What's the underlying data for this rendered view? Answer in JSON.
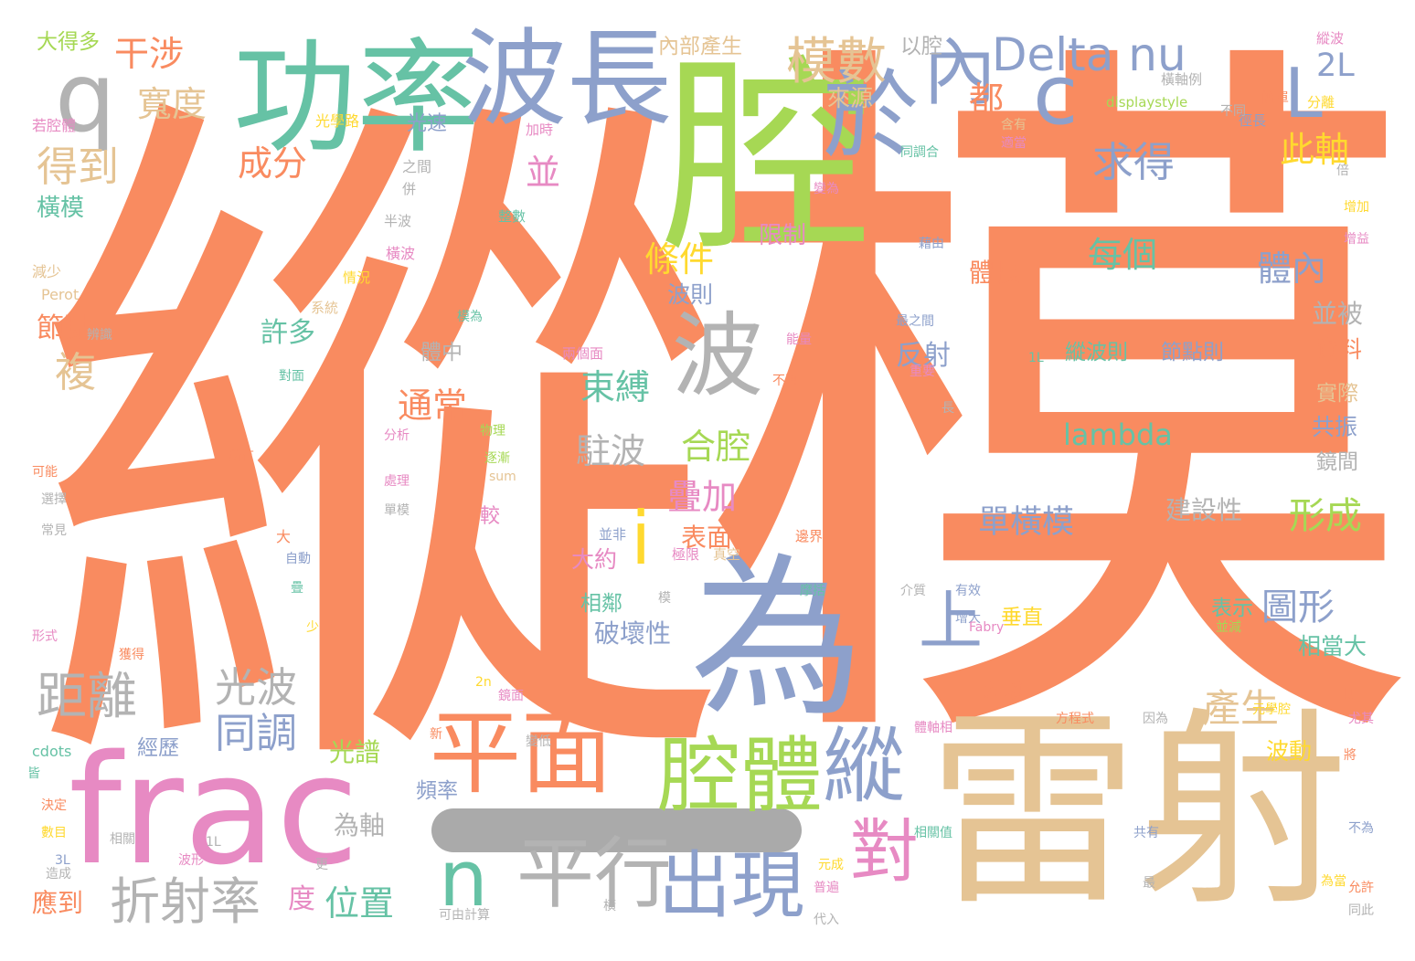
{
  "palette": {
    "orange": "#f98b60",
    "green": "#66c2a5",
    "blue": "#8da0cb",
    "pink": "#e78ac3",
    "lime": "#a6d854",
    "yellow": "#ffd92f",
    "tan": "#e5c494",
    "gray": "#b3b3b3"
  },
  "words": [
    {
      "text": "縱",
      "color": "orange",
      "orient": "h"
    },
    {
      "text": "模",
      "color": "orange",
      "orient": "h"
    },
    {
      "text": "腔",
      "color": "lime",
      "orient": "h"
    },
    {
      "text": "為",
      "color": "blue",
      "orient": "h"
    },
    {
      "text": "雷射",
      "color": "tan",
      "orient": "h"
    },
    {
      "text": "frac",
      "color": "pink",
      "orient": "h"
    },
    {
      "text": "功率",
      "color": "green",
      "orient": "h"
    },
    {
      "text": "波長",
      "color": "blue",
      "orient": "h"
    },
    {
      "text": "平面",
      "color": "orange",
      "orient": "h"
    },
    {
      "text": "腔體",
      "color": "lime",
      "orient": "h"
    },
    {
      "text": "波",
      "color": "gray",
      "orient": "h"
    },
    {
      "text": "於",
      "color": "blue",
      "orient": "h"
    },
    {
      "text": "內",
      "color": "blue",
      "orient": "h"
    },
    {
      "text": "q",
      "color": "gray",
      "orient": "h"
    },
    {
      "text": "c",
      "color": "blue",
      "orient": "h"
    },
    {
      "text": "L",
      "color": "blue",
      "orient": "h"
    },
    {
      "text": "Delta nu",
      "color": "blue",
      "orient": "h"
    },
    {
      "text": "2L",
      "color": "blue",
      "orient": "h"
    },
    {
      "text": "模數",
      "color": "tan",
      "orient": "h"
    },
    {
      "text": "縱",
      "color": "blue",
      "orient": "h"
    },
    {
      "text": "n",
      "color": "green",
      "orient": "h"
    },
    {
      "text": "平行",
      "color": "gray",
      "orient": "h"
    },
    {
      "text": "出現",
      "color": "blue",
      "orient": "h"
    },
    {
      "text": "對",
      "color": "pink",
      "orient": "h"
    },
    {
      "text": "上",
      "color": "blue",
      "orient": "h"
    },
    {
      "text": "i",
      "color": "yellow",
      "orient": "h"
    },
    {
      "text": "干涉",
      "color": "orange",
      "orient": "h"
    },
    {
      "text": "寬度",
      "color": "tan",
      "orient": "h"
    },
    {
      "text": "得到",
      "color": "tan",
      "orient": "h"
    },
    {
      "text": "成分",
      "color": "orange",
      "orient": "h"
    },
    {
      "text": "橫模",
      "color": "green",
      "orient": "h"
    },
    {
      "text": "大得多",
      "color": "lime",
      "orient": "h"
    },
    {
      "text": "內部產生",
      "color": "tan",
      "orient": "h"
    },
    {
      "text": "以腔",
      "color": "gray",
      "orient": "h"
    },
    {
      "text": "都",
      "color": "orange",
      "orient": "h"
    },
    {
      "text": "來源",
      "color": "tan",
      "orient": "h"
    },
    {
      "text": "求得",
      "color": "blue",
      "orient": "h"
    },
    {
      "text": "此軸",
      "color": "yellow",
      "orient": "h"
    },
    {
      "text": "並",
      "color": "pink",
      "orient": "h"
    },
    {
      "text": "條件",
      "color": "yellow",
      "orient": "h"
    },
    {
      "text": "限制",
      "color": "pink",
      "orient": "h"
    },
    {
      "text": "每個",
      "color": "green",
      "orient": "h"
    },
    {
      "text": "體內",
      "color": "blue",
      "orient": "h"
    },
    {
      "text": "體長",
      "color": "orange",
      "orient": "h"
    },
    {
      "text": "波則",
      "color": "blue",
      "orient": "h"
    },
    {
      "text": "並被",
      "color": "gray",
      "orient": "h"
    },
    {
      "text": "節點",
      "color": "orange",
      "orient": "h"
    },
    {
      "text": "許多",
      "color": "green",
      "orient": "h"
    },
    {
      "text": "複",
      "color": "tan",
      "orient": "h"
    },
    {
      "text": "反射",
      "color": "blue",
      "orient": "h"
    },
    {
      "text": "體中",
      "color": "gray",
      "orient": "h"
    },
    {
      "text": "縱波則",
      "color": "green",
      "orient": "h"
    },
    {
      "text": "節點則",
      "color": "blue",
      "orient": "h"
    },
    {
      "text": "資料",
      "color": "orange",
      "orient": "h"
    },
    {
      "text": "束縛",
      "color": "green",
      "orient": "h"
    },
    {
      "text": "通常",
      "color": "orange",
      "orient": "h"
    },
    {
      "text": "實際",
      "color": "tan",
      "orient": "h"
    },
    {
      "text": "lambda",
      "color": "green",
      "orient": "h"
    },
    {
      "text": "共振",
      "color": "blue",
      "orient": "h"
    },
    {
      "text": "駐波",
      "color": "gray",
      "orient": "h"
    },
    {
      "text": "合腔",
      "color": "lime",
      "orient": "h"
    },
    {
      "text": "鏡間",
      "color": "gray",
      "orient": "h"
    },
    {
      "text": "疊加",
      "color": "pink",
      "orient": "h"
    },
    {
      "text": "形成",
      "color": "lime",
      "orient": "h"
    },
    {
      "text": "單橫模",
      "color": "blue",
      "orient": "h"
    },
    {
      "text": "建設性",
      "color": "gray",
      "orient": "h"
    },
    {
      "text": "表面",
      "color": "orange",
      "orient": "h"
    },
    {
      "text": "大約",
      "color": "pink",
      "orient": "h"
    },
    {
      "text": "圖形",
      "color": "blue",
      "orient": "h"
    },
    {
      "text": "相鄰",
      "color": "green",
      "orient": "h"
    },
    {
      "text": "破壞性",
      "color": "blue",
      "orient": "h"
    },
    {
      "text": "垂直",
      "color": "yellow",
      "orient": "h"
    },
    {
      "text": "表示",
      "color": "green",
      "orient": "h"
    },
    {
      "text": "相當大",
      "color": "green",
      "orient": "h"
    },
    {
      "text": "距離",
      "color": "gray",
      "orient": "h"
    },
    {
      "text": "光波",
      "color": "gray",
      "orient": "h"
    },
    {
      "text": "同調",
      "color": "blue",
      "orient": "h"
    },
    {
      "text": "產生",
      "color": "tan",
      "orient": "h"
    },
    {
      "text": "差以",
      "color": "orange",
      "orient": "h"
    },
    {
      "text": "光譜",
      "color": "lime",
      "orient": "h"
    },
    {
      "text": "經歷",
      "color": "blue",
      "orient": "h"
    },
    {
      "text": "頻率",
      "color": "blue",
      "orient": "h"
    },
    {
      "text": "波動",
      "color": "yellow",
      "orient": "h"
    },
    {
      "text": "為軸",
      "color": "gray",
      "orient": "h"
    },
    {
      "text": "折射率",
      "color": "gray",
      "orient": "h"
    },
    {
      "text": "位置",
      "color": "green",
      "orient": "h"
    },
    {
      "text": "度",
      "color": "pink",
      "orient": "h"
    },
    {
      "text": "應到",
      "color": "orange",
      "orient": "h"
    },
    {
      "text": "光速",
      "color": "blue",
      "orient": "h"
    },
    {
      "text": "光學路",
      "color": "yellow",
      "orient": "h"
    },
    {
      "text": "之間",
      "color": "gray",
      "orient": "h"
    },
    {
      "text": "併",
      "color": "gray",
      "orient": "h"
    },
    {
      "text": "半波",
      "color": "gray",
      "orient": "h"
    },
    {
      "text": "橫波",
      "color": "pink",
      "orient": "h"
    },
    {
      "text": "情況",
      "color": "yellow",
      "orient": "h"
    },
    {
      "text": "系統",
      "color": "tan",
      "orient": "h"
    },
    {
      "text": "若腔體",
      "color": "pink",
      "orient": "h"
    },
    {
      "text": "減少",
      "color": "tan",
      "orient": "h"
    },
    {
      "text": "Perot",
      "color": "tan",
      "orient": "h"
    },
    {
      "text": "加時",
      "color": "pink",
      "orient": "h"
    },
    {
      "text": "整數",
      "color": "green",
      "orient": "h"
    },
    {
      "text": "簡單",
      "color": "orange",
      "orient": "h"
    },
    {
      "text": "徑長",
      "color": "blue",
      "orient": "h"
    },
    {
      "text": "displaystyle",
      "color": "lime",
      "orient": "h"
    },
    {
      "text": "橫軸例",
      "color": "gray",
      "orient": "h"
    },
    {
      "text": "不同",
      "color": "gray",
      "orient": "h"
    },
    {
      "text": "縱波",
      "color": "pink",
      "orient": "h"
    },
    {
      "text": "分離",
      "color": "yellow",
      "orient": "h"
    },
    {
      "text": "含有",
      "color": "tan",
      "orient": "h"
    },
    {
      "text": "同調合",
      "color": "green",
      "orient": "h"
    },
    {
      "text": "適當",
      "color": "pink",
      "orient": "h"
    },
    {
      "text": "變為",
      "color": "pink",
      "orient": "h"
    },
    {
      "text": "藉由",
      "color": "blue",
      "orient": "h"
    },
    {
      "text": "倍",
      "color": "gray",
      "orient": "h"
    },
    {
      "text": "增加",
      "color": "yellow",
      "orient": "h"
    },
    {
      "text": "增益",
      "color": "pink",
      "orient": "h"
    },
    {
      "text": "最之間",
      "color": "blue",
      "orient": "h"
    },
    {
      "text": "1L",
      "color": "green",
      "orient": "h"
    },
    {
      "text": "重要",
      "color": "pink",
      "orient": "h"
    },
    {
      "text": "長",
      "color": "gray",
      "orient": "h"
    },
    {
      "text": "能量",
      "color": "pink",
      "orient": "h"
    },
    {
      "text": "不再",
      "color": "orange",
      "orient": "h"
    },
    {
      "text": "兩個面",
      "color": "pink",
      "orient": "h"
    },
    {
      "text": "物理",
      "color": "lime",
      "orient": "h"
    },
    {
      "text": "逐漸",
      "color": "lime",
      "orient": "h"
    },
    {
      "text": "sum",
      "color": "tan",
      "orient": "h"
    },
    {
      "text": "模為",
      "color": "green",
      "orient": "h"
    },
    {
      "text": "對面",
      "color": "green",
      "orient": "h"
    },
    {
      "text": "分析",
      "color": "pink",
      "orient": "h"
    },
    {
      "text": "所有",
      "color": "orange",
      "orient": "h"
    },
    {
      "text": "處理",
      "color": "pink",
      "orient": "h"
    },
    {
      "text": "單模",
      "color": "gray",
      "orient": "h"
    },
    {
      "text": "較",
      "color": "pink",
      "orient": "h"
    },
    {
      "text": "可能",
      "color": "orange",
      "orient": "h"
    },
    {
      "text": "選擇",
      "color": "gray",
      "orient": "h"
    },
    {
      "text": "常見",
      "color": "gray",
      "orient": "h"
    },
    {
      "text": "大",
      "color": "orange",
      "orient": "h"
    },
    {
      "text": "自動",
      "color": "blue",
      "orient": "h"
    },
    {
      "text": "疊",
      "color": "green",
      "orient": "h"
    },
    {
      "text": "少",
      "color": "yellow",
      "orient": "h"
    },
    {
      "text": "形式",
      "color": "pink",
      "orient": "h"
    },
    {
      "text": "獲得",
      "color": "orange",
      "orient": "h"
    },
    {
      "text": "辨識",
      "color": "gray",
      "orient": "h"
    },
    {
      "text": "並非",
      "color": "blue",
      "orient": "h"
    },
    {
      "text": "極限",
      "color": "pink",
      "orient": "h"
    },
    {
      "text": "真空",
      "color": "tan",
      "orient": "h"
    },
    {
      "text": "邊界",
      "color": "orange",
      "orient": "h"
    },
    {
      "text": "模",
      "color": "gray",
      "orient": "h"
    },
    {
      "text": "摩括",
      "color": "green",
      "orient": "h"
    },
    {
      "text": "介質",
      "color": "gray",
      "orient": "h"
    },
    {
      "text": "有效",
      "color": "blue",
      "orient": "h"
    },
    {
      "text": "增大",
      "color": "blue",
      "orient": "h"
    },
    {
      "text": "Fabry",
      "color": "pink",
      "orient": "h"
    },
    {
      "text": "並減",
      "color": "lime",
      "orient": "h"
    },
    {
      "text": "元學腔",
      "color": "yellow",
      "orient": "h"
    },
    {
      "text": "則",
      "color": "orange",
      "orient": "h"
    },
    {
      "text": "尤其",
      "color": "pink",
      "orient": "h"
    },
    {
      "text": "方程式",
      "color": "orange",
      "orient": "h"
    },
    {
      "text": "因為",
      "color": "gray",
      "orient": "h"
    },
    {
      "text": "體軸相",
      "color": "pink",
      "orient": "h"
    },
    {
      "text": "鏡面",
      "color": "pink",
      "orient": "h"
    },
    {
      "text": "2n",
      "color": "yellow",
      "orient": "h"
    },
    {
      "text": "新",
      "color": "orange",
      "orient": "h"
    },
    {
      "text": "變低",
      "color": "gray",
      "orient": "h"
    },
    {
      "text": "將",
      "color": "orange",
      "orient": "h"
    },
    {
      "text": "cdots",
      "color": "green",
      "orient": "h"
    },
    {
      "text": "皆",
      "color": "green",
      "orient": "h"
    },
    {
      "text": "決定",
      "color": "orange",
      "orient": "h"
    },
    {
      "text": "數目",
      "color": "yellow",
      "orient": "h"
    },
    {
      "text": "1L",
      "color": "gray",
      "orient": "h"
    },
    {
      "text": "相關",
      "color": "gray",
      "orient": "h"
    },
    {
      "text": "波形",
      "color": "pink",
      "orient": "h"
    },
    {
      "text": "3L",
      "color": "blue",
      "orient": "h"
    },
    {
      "text": "造成",
      "color": "gray",
      "orient": "h"
    },
    {
      "text": "更",
      "color": "gray",
      "orient": "h"
    },
    {
      "text": "共有",
      "color": "blue",
      "orient": "h"
    },
    {
      "text": "不為",
      "color": "blue",
      "orient": "h"
    },
    {
      "text": "最",
      "color": "gray",
      "orient": "h"
    },
    {
      "text": "元成",
      "color": "yellow",
      "orient": "h"
    },
    {
      "text": "普遍",
      "color": "pink",
      "orient": "h"
    },
    {
      "text": "為當",
      "color": "yellow",
      "orient": "h"
    },
    {
      "text": "允許",
      "color": "orange",
      "orient": "h"
    },
    {
      "text": "同此",
      "color": "gray",
      "orient": "h"
    },
    {
      "text": "可由計算",
      "color": "gray",
      "orient": "h"
    },
    {
      "text": "橫",
      "color": "gray",
      "orient": "h"
    },
    {
      "text": "代入",
      "color": "gray",
      "orient": "h"
    },
    {
      "text": "相關值",
      "color": "green",
      "orient": "h"
    }
  ]
}
